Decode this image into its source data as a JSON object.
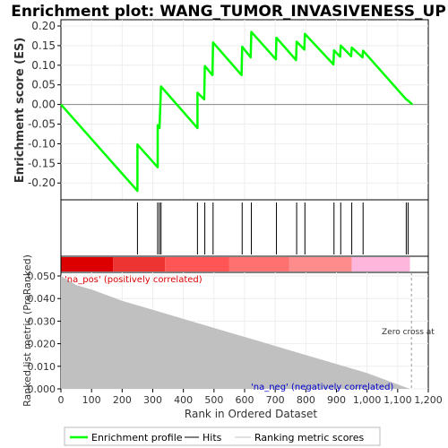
{
  "chart_data": [
    {
      "type": "line",
      "title": "Enrichment plot: WANG_TUMOR_INVASIVENESS_UP",
      "ylabel": "Enrichment score (ES)",
      "ylim": [
        -0.22,
        0.2
      ],
      "y_ticks": [
        "0.20",
        "0.15",
        "0.10",
        "0.05",
        "0.00",
        "-0.05",
        "-0.10",
        "-0.15",
        "-0.20"
      ],
      "y_tick_values": [
        0.2,
        0.15,
        0.1,
        0.05,
        0.0,
        -0.05,
        -0.1,
        -0.15,
        -0.2
      ],
      "grid": true,
      "series": [
        {
          "name": "Enrichment profile",
          "color": "#00ff00",
          "points": [
            [
              0,
              0.0
            ],
            [
              250,
              -0.22
            ],
            [
              250,
              -0.102
            ],
            [
              316,
              -0.16
            ],
            [
              316,
              -0.053
            ],
            [
              322,
              -0.06
            ],
            [
              327,
              0.046
            ],
            [
              446,
              -0.06
            ],
            [
              446,
              0.03
            ],
            [
              468,
              0.013
            ],
            [
              470,
              0.098
            ],
            [
              495,
              0.075
            ],
            [
              497,
              0.158
            ],
            [
              590,
              0.075
            ],
            [
              592,
              0.147
            ],
            [
              620,
              0.12
            ],
            [
              622,
              0.185
            ],
            [
              702,
              0.115
            ],
            [
              704,
              0.17
            ],
            [
              768,
              0.113
            ],
            [
              770,
              0.16
            ],
            [
              795,
              0.14
            ],
            [
              797,
              0.18
            ],
            [
              890,
              0.102
            ],
            [
              892,
              0.138
            ],
            [
              912,
              0.122
            ],
            [
              914,
              0.15
            ],
            [
              948,
              0.123
            ],
            [
              950,
              0.145
            ],
            [
              985,
              0.12
            ],
            [
              987,
              0.137
            ],
            [
              1128,
              0.013
            ],
            [
              1134,
              0.01
            ],
            [
              1148,
              0.0
            ]
          ]
        }
      ]
    },
    {
      "type": "hits",
      "hit_positions": [
        250,
        316,
        322,
        327,
        446,
        470,
        497,
        592,
        622,
        704,
        770,
        797,
        892,
        914,
        950,
        987,
        1128,
        1134
      ]
    },
    {
      "type": "heatmap",
      "segments": [
        {
          "from": 0,
          "to": 170,
          "color": "#dd0000"
        },
        {
          "from": 170,
          "to": 340,
          "color": "#ee3333"
        },
        {
          "from": 340,
          "to": 550,
          "color": "#ff5555"
        },
        {
          "from": 550,
          "to": 745,
          "color": "#ff7070"
        },
        {
          "from": 745,
          "to": 950,
          "color": "#ff8c8c"
        },
        {
          "from": 950,
          "to": 1140,
          "color": "#ffb6dd"
        }
      ]
    },
    {
      "type": "area",
      "ylabel": "Ranked list metric (PreRanked)",
      "xlabel": "Rank in Ordered Dataset",
      "xlim": [
        0,
        1200
      ],
      "ylim": [
        0,
        0.05
      ],
      "x_ticks": [
        "0",
        "100",
        "200",
        "300",
        "400",
        "500",
        "600",
        "700",
        "800",
        "900",
        "1,000",
        "1,100",
        "1,200"
      ],
      "x_tick_values": [
        0,
        100,
        200,
        300,
        400,
        500,
        600,
        700,
        800,
        900,
        1000,
        1100,
        1200
      ],
      "y_ticks": [
        "0.000",
        "0.010",
        "0.020",
        "0.030",
        "0.040",
        "0.050"
      ],
      "y_tick_values": [
        0.0,
        0.01,
        0.02,
        0.03,
        0.04,
        0.05
      ],
      "color": "#c0c0c0",
      "points": [
        [
          0,
          0.05
        ],
        [
          50,
          0.046
        ],
        [
          100,
          0.044
        ],
        [
          200,
          0.039
        ],
        [
          300,
          0.035
        ],
        [
          400,
          0.031
        ],
        [
          500,
          0.027
        ],
        [
          600,
          0.023
        ],
        [
          700,
          0.019
        ],
        [
          800,
          0.015
        ],
        [
          900,
          0.011
        ],
        [
          1000,
          0.007
        ],
        [
          1100,
          0.002
        ],
        [
          1140,
          0.0
        ]
      ],
      "zero_cross": 1145,
      "annotations": {
        "pos_label": "'na_pos' (positively correlated)",
        "neg_label": "'na_neg' (negatively correlated)",
        "zero_cross_label": "Zero cross at"
      }
    }
  ],
  "legend": {
    "items": [
      {
        "label": "Enrichment profile",
        "color": "#00ff00"
      },
      {
        "label": "Hits",
        "color": "#000000"
      },
      {
        "label": "Ranking metric scores",
        "color": "#c0c0c0"
      }
    ]
  }
}
